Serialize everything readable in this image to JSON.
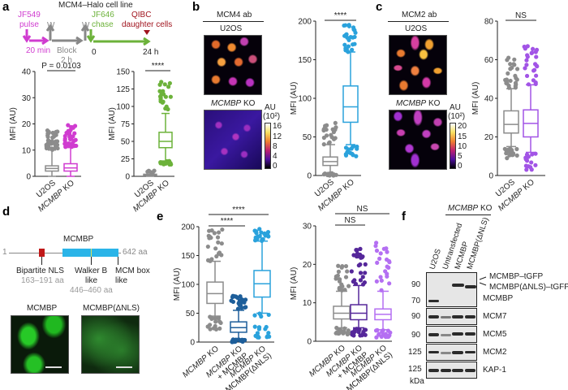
{
  "panels": {
    "a": "a",
    "b": "b",
    "c": "c",
    "d": "d",
    "e": "e",
    "f": "f"
  },
  "panel_a": {
    "title": "MCM4–Halo cell line",
    "pulse_line1": "JF549",
    "pulse_line2": "pulse",
    "pulse_time": "20 min",
    "wash": "W",
    "block_line1": "Block",
    "block_line2": "2 h",
    "chase_line1": "JF646",
    "chase_line2": "chase",
    "qibc_line1": "QIBC",
    "qibc_line2": "daughter cells",
    "t0": "0",
    "t24": "24 h"
  },
  "panel_b": {
    "header": "MCM4 ab",
    "img1_label": "U2OS",
    "img2_label_italic": "MCMBP",
    "img2_label_rest": " KO",
    "cb_unit": "AU",
    "cb_scale": "(10²)",
    "cb_ticks": [
      "16",
      "12",
      "8",
      "4",
      "0"
    ]
  },
  "panel_c": {
    "header": "MCM2 ab",
    "img1_label": "U2OS",
    "img2_label_italic": "MCMBP",
    "img2_label_rest": " KO",
    "cb_unit": "AU",
    "cb_scale": "(10²)",
    "cb_ticks": [
      "20",
      "15",
      "10",
      "5",
      "0"
    ]
  },
  "panel_d": {
    "protein": "MCMBP",
    "start": "1",
    "end": "642 aa",
    "nls": "Bipartite NLS",
    "nls_range": "163–191 aa",
    "walker_line1": "Walker B",
    "walker_line2": "like",
    "walker_range": "446–460 aa",
    "mcm_line1": "MCM box",
    "mcm_line2": "like",
    "img1_label": "MCMBP",
    "img2_label": "MCMBP(ΔNLS)"
  },
  "panel_f": {
    "group_italic": "MCMBP",
    "group_rest": " KO",
    "lanes": [
      "U2OS",
      "Untransfected",
      "MCMBP",
      "MCMBP(ΔNLS)"
    ],
    "mw": [
      "90",
      "70",
      "90",
      "90",
      "125",
      "125"
    ],
    "mw_unit": "kDa",
    "bands": [
      "MCMBP–tGFP",
      "MCMBP(ΔNLS)–tGFP",
      "MCMBP",
      "MCM7",
      "MCM5",
      "MCM2",
      "KAP-1"
    ]
  },
  "colors": {
    "grey": "#8c8c8c",
    "magenta": "#d03cd0",
    "green": "#6cb23a",
    "blue": "#2aa2dc",
    "purple": "#a254e6",
    "darkblue": "#1d5e9a",
    "darkpurple": "#55279a",
    "lightpurple": "#b46ff2",
    "darkred": "#a0141e"
  },
  "chart_data": [
    {
      "id": "aL",
      "type": "box",
      "ylabel": "MFI (AU)",
      "ylim": [
        0,
        40
      ],
      "yticks": [
        0,
        10,
        20,
        30,
        40
      ],
      "categories": [
        "U2OS",
        "MCMBP KO"
      ],
      "colors": [
        "#8c8c8c",
        "#d03cd0"
      ],
      "boxes": [
        {
          "min": 0,
          "q1": 2,
          "median": 3,
          "q3": 4,
          "max": 10,
          "outliers": [
            10,
            17.5
          ]
        },
        {
          "min": 0,
          "q1": 2,
          "median": 3.2,
          "q3": 4.8,
          "max": 11,
          "outliers": [
            11,
            19.5
          ]
        }
      ],
      "significance": [
        {
          "text": "P = 0.0103",
          "from": 0,
          "to": 1,
          "level": 0
        }
      ]
    },
    {
      "id": "aR",
      "type": "box",
      "ylabel": "MFI (AU)",
      "ylim": [
        0,
        150
      ],
      "yticks": [
        0,
        25,
        50,
        75,
        100,
        125,
        150
      ],
      "categories": [
        "U2OS",
        "MCMBP KO"
      ],
      "colors": [
        "#8c8c8c",
        "#6cb23a"
      ],
      "boxes": [
        {
          "min": 0,
          "q1": 1,
          "median": 2,
          "q3": 3,
          "max": 5,
          "outliers": [
            5,
            8
          ]
        },
        {
          "min": 22,
          "q1": 41,
          "median": 50,
          "q3": 63,
          "max": 90,
          "outliers": [
            17,
            135
          ]
        }
      ],
      "significance": [
        {
          "text": "****",
          "from": 0,
          "to": 1,
          "level": 0
        }
      ]
    },
    {
      "id": "b",
      "type": "box",
      "ylabel": "MFI (AU)",
      "ylim": [
        0,
        200
      ],
      "yticks": [
        0,
        50,
        100,
        150,
        200
      ],
      "categories": [
        "U2OS",
        "MCMBP KO"
      ],
      "colors": [
        "#8c8c8c",
        "#2aa2dc"
      ],
      "boxes": [
        {
          "min": 3,
          "q1": 13,
          "median": 18,
          "q3": 24,
          "max": 40,
          "outliers": [
            0,
            68
          ]
        },
        {
          "min": 40,
          "q1": 69,
          "median": 89,
          "q3": 116,
          "max": 160,
          "outliers": [
            25,
            195
          ]
        }
      ],
      "significance": [
        {
          "text": "****",
          "from": 0,
          "to": 1,
          "level": 0
        }
      ]
    },
    {
      "id": "c",
      "type": "box",
      "ylabel": "MFI (AU)",
      "ylim": [
        0,
        80
      ],
      "yticks": [
        0,
        20,
        40,
        60,
        80
      ],
      "categories": [
        "U2OS",
        "MCMBP KO"
      ],
      "colors": [
        "#8c8c8c",
        "#a254e6"
      ],
      "boxes": [
        {
          "min": 15,
          "q1": 22,
          "median": 26.5,
          "q3": 33.5,
          "max": 45,
          "outliers": [
            9,
            61
          ]
        },
        {
          "min": 12,
          "q1": 20,
          "median": 27,
          "q3": 34,
          "max": 47,
          "outliers": [
            3,
            67
          ]
        }
      ],
      "significance": [
        {
          "text": "NS",
          "from": 0,
          "to": 1,
          "level": 0
        }
      ]
    },
    {
      "id": "eL",
      "type": "box",
      "ylabel": "MFI (AU)",
      "ylim": [
        0,
        200
      ],
      "yticks": [
        0,
        50,
        100,
        150,
        200
      ],
      "categories": [
        "MCMBP KO",
        "MCMBP KO\n+ MCMBP",
        "MCMBP KO\n+ MCMBP(ΔNLS)"
      ],
      "colors": [
        "#8c8c8c",
        "#1d5e9a",
        "#2aa2dc"
      ],
      "boxes": [
        {
          "min": 45,
          "q1": 67,
          "median": 84,
          "q3": 104,
          "max": 140,
          "outliers": [
            22,
            195
          ]
        },
        {
          "min": 5,
          "q1": 17,
          "median": 25,
          "q3": 35,
          "max": 55,
          "outliers": [
            0,
            80
          ]
        },
        {
          "min": 50,
          "q1": 78,
          "median": 101,
          "q3": 124,
          "max": 175,
          "outliers": [
            8,
            196
          ]
        }
      ],
      "significance": [
        {
          "text": "****",
          "from": 0,
          "to": 1,
          "level": 0
        },
        {
          "text": "****",
          "from": 0,
          "to": 2,
          "level": 1
        }
      ]
    },
    {
      "id": "eR",
      "type": "box",
      "ylabel": "MFI (AU)",
      "ylim": [
        0,
        30
      ],
      "yticks": [
        0,
        10,
        20,
        30
      ],
      "categories": [
        "MCMBP KO",
        "MCMBP KO\n+ MCMBP",
        "MCMBP KO\n+ MCMBP(ΔNLS)"
      ],
      "colors": [
        "#8c8c8c",
        "#55279a",
        "#b46ff2"
      ],
      "boxes": [
        {
          "min": 3.5,
          "q1": 5.8,
          "median": 7.3,
          "q3": 9.1,
          "max": 13,
          "outliers": [
            1.8,
            19.6
          ]
        },
        {
          "min": 3.5,
          "q1": 5.6,
          "median": 7.3,
          "q3": 9.5,
          "max": 14.5,
          "outliers": [
            1.5,
            24
          ]
        },
        {
          "min": 3,
          "q1": 5.6,
          "median": 7,
          "q3": 8.4,
          "max": 13,
          "outliers": [
            1,
            25.6
          ]
        }
      ],
      "significance": [
        {
          "text": "NS",
          "from": 0,
          "to": 1,
          "level": 0
        },
        {
          "text": "NS",
          "from": 0,
          "to": 2,
          "level": 1
        }
      ]
    }
  ]
}
